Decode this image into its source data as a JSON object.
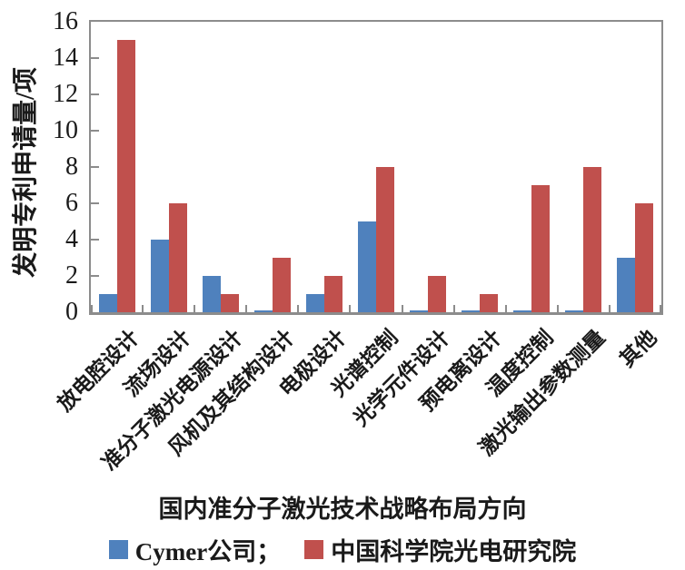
{
  "chart_data": {
    "type": "bar",
    "title": "",
    "xlabel": "国内准分子激光技术战略布局方向",
    "ylabel": "发明专利申请量/项",
    "ylim": [
      0,
      16
    ],
    "ytick_step": 2,
    "yticks": [
      0,
      2,
      4,
      6,
      8,
      10,
      12,
      14,
      16
    ],
    "grid": false,
    "legend_position": "bottom",
    "categories": [
      "放电腔设计",
      "流场设计",
      "准分子激光电源设计",
      "风机及其结构设计",
      "电极设计",
      "光谱控制",
      "光学元件设计",
      "预电离设计",
      "温度控制",
      "激光输出参数测量",
      "其他"
    ],
    "series": [
      {
        "name": "Cymer公司",
        "color": "#4f81bd",
        "values": [
          1,
          4,
          2,
          0.1,
          1,
          5,
          0.1,
          0.1,
          0.1,
          0.1,
          3
        ]
      },
      {
        "name": "中国科学院光电研究院",
        "color": "#c0504d",
        "values": [
          15,
          6,
          1,
          3,
          2,
          8,
          2,
          1,
          7,
          8,
          6
        ]
      }
    ]
  },
  "legend": {
    "items": [
      {
        "label": "Cymer公司；",
        "color": "#4f81bd"
      },
      {
        "label": "中国科学院光电研究院",
        "color": "#c0504d"
      }
    ]
  },
  "colors": {
    "axis": "#8c8c8c",
    "series_blue": "#4f81bd",
    "series_red": "#c0504d"
  }
}
